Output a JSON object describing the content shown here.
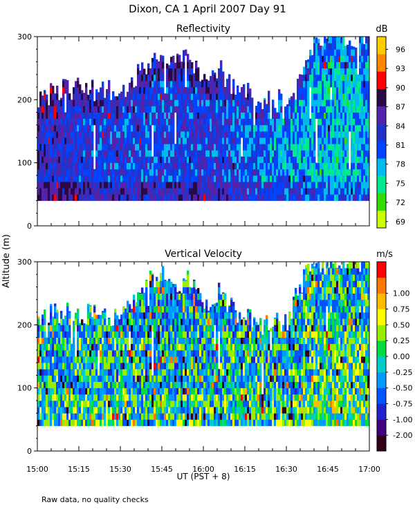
{
  "title": "Dixon, CA   1 April 2007   Day  91",
  "footnote": "Raw data, no quality checks",
  "ylabel": "Altitude (m)",
  "xlabel": "UT  (PST + 8)",
  "colors": {
    "reflectivity": [
      "#ccff00",
      "#33dd00",
      "#00e890",
      "#00bbee",
      "#0044ff",
      "#2233cc",
      "#5522aa",
      "#2a0a44",
      "#ff0000",
      "#ff8800",
      "#ffcc00"
    ],
    "velocity": [
      "#33001a",
      "#400080",
      "#2222cc",
      "#0055ff",
      "#0099ff",
      "#00cccc",
      "#00dd44",
      "#99ee00",
      "#ffff00",
      "#ffbb00",
      "#ff7700",
      "#ff0000"
    ]
  },
  "chart_data": [
    {
      "type": "heatmap",
      "title": "Reflectivity",
      "colorbar_unit": "dB",
      "colorbar_ticks": [
        "69",
        "72",
        "75",
        "78",
        "81",
        "84",
        "87",
        "90",
        "93",
        "96"
      ],
      "colorbar_range": [
        68,
        98
      ],
      "x": {
        "ticks": [
          "15:00",
          "15:15",
          "15:30",
          "15:45",
          "16:00",
          "16:15",
          "16:30",
          "16:45",
          "17:00"
        ],
        "range_minutes": [
          0,
          120
        ]
      },
      "y": {
        "ticks": [
          "0",
          "100",
          "200",
          "300"
        ],
        "range": [
          0,
          300
        ]
      },
      "data_floor_m": 40,
      "echo_top_m": [
        [
          0,
          200
        ],
        [
          10,
          220
        ],
        [
          20,
          215
        ],
        [
          30,
          215
        ],
        [
          35,
          235
        ],
        [
          40,
          260
        ],
        [
          45,
          275
        ],
        [
          50,
          260
        ],
        [
          55,
          270
        ],
        [
          60,
          225
        ],
        [
          65,
          250
        ],
        [
          70,
          225
        ],
        [
          80,
          200
        ],
        [
          90,
          205
        ],
        [
          95,
          255
        ],
        [
          100,
          295
        ],
        [
          105,
          300
        ],
        [
          120,
          300
        ]
      ],
      "dominant_db": [
        [
          0,
          85
        ],
        [
          30,
          82
        ],
        [
          60,
          83
        ],
        [
          90,
          79
        ],
        [
          110,
          77
        ],
        [
          120,
          79
        ]
      ]
    },
    {
      "type": "heatmap",
      "title": "Vertical Velocity",
      "colorbar_unit": "m/s",
      "colorbar_ticks": [
        "-2.00",
        "-1.00",
        "-0.75",
        "-0.50",
        "-0.25",
        "0.00",
        "0.25",
        "0.50",
        "0.75",
        "1.00"
      ],
      "colorbar_range": [
        -2.0,
        1.25
      ],
      "x": {
        "ticks": [
          "15:00",
          "15:15",
          "15:30",
          "15:45",
          "16:00",
          "16:15",
          "16:30",
          "16:45",
          "17:00"
        ],
        "range_minutes": [
          0,
          120
        ]
      },
      "y": {
        "ticks": [
          "0",
          "100",
          "200",
          "300"
        ],
        "range": [
          0,
          300
        ]
      },
      "data_floor_m": 40,
      "echo_top_m": [
        [
          0,
          215
        ],
        [
          10,
          220
        ],
        [
          20,
          215
        ],
        [
          30,
          215
        ],
        [
          35,
          240
        ],
        [
          40,
          275
        ],
        [
          45,
          280
        ],
        [
          50,
          265
        ],
        [
          55,
          270
        ],
        [
          60,
          225
        ],
        [
          65,
          255
        ],
        [
          70,
          225
        ],
        [
          80,
          200
        ],
        [
          90,
          205
        ],
        [
          95,
          265
        ],
        [
          100,
          300
        ],
        [
          120,
          300
        ]
      ]
    }
  ]
}
